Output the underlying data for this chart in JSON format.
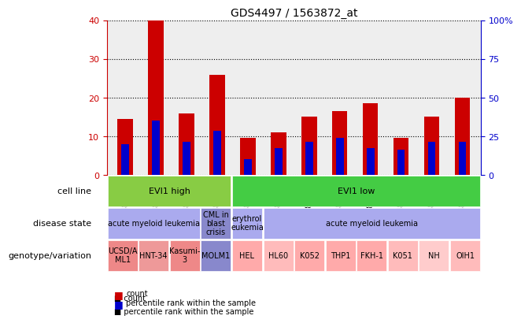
{
  "title": "GDS4497 / 1563872_at",
  "samples": [
    "GSM862831",
    "GSM862832",
    "GSM862833",
    "GSM862834",
    "GSM862823",
    "GSM862824",
    "GSM862825",
    "GSM862826",
    "GSM862827",
    "GSM862828",
    "GSM862829",
    "GSM862830"
  ],
  "count_values": [
    14.5,
    40.0,
    16.0,
    26.0,
    9.5,
    11.0,
    15.0,
    16.5,
    18.5,
    9.5,
    15.0,
    20.0
  ],
  "percentile_values": [
    8.0,
    14.0,
    8.5,
    11.5,
    4.0,
    7.0,
    8.5,
    9.5,
    7.0,
    6.5,
    8.5,
    8.5
  ],
  "ylim_left": [
    0,
    40
  ],
  "ylim_right": [
    0,
    100
  ],
  "yticks_left": [
    0,
    10,
    20,
    30,
    40
  ],
  "yticks_right": [
    0,
    25,
    50,
    75,
    100
  ],
  "ytick_labels_right": [
    "0",
    "25",
    "50",
    "75",
    "100%"
  ],
  "bar_color": "#cc0000",
  "percentile_color": "#0000cc",
  "bg_color": "#ffffff",
  "plot_bg_color": "#ffffff",
  "grid_color": "#000000",
  "axis_color_left": "#cc0000",
  "axis_color_right": "#0000cc",
  "bar_width": 0.5,
  "genotype_groups": [
    {
      "label": "EVI1 high",
      "start": 0,
      "end": 4,
      "color": "#88cc44"
    },
    {
      "label": "EVI1 low",
      "start": 4,
      "end": 12,
      "color": "#44cc44"
    }
  ],
  "disease_groups": [
    {
      "label": "acute myeloid leukemia",
      "start": 0,
      "end": 3,
      "color": "#aaaaee"
    },
    {
      "label": "CML in\nblast\ncrisis",
      "start": 3,
      "end": 4,
      "color": "#8888cc"
    },
    {
      "label": "erythrol\neukemia",
      "start": 4,
      "end": 5,
      "color": "#aaaaee"
    },
    {
      "label": "acute myeloid leukemia",
      "start": 5,
      "end": 12,
      "color": "#aaaaee"
    }
  ],
  "cell_groups": [
    {
      "label": "UCSD/A\nML1",
      "start": 0,
      "end": 1,
      "color": "#ee8888"
    },
    {
      "label": "HNT-34",
      "start": 1,
      "end": 2,
      "color": "#ee9999"
    },
    {
      "label": "Kasumi-\n3",
      "start": 2,
      "end": 3,
      "color": "#ee8888"
    },
    {
      "label": "MOLM1",
      "start": 3,
      "end": 4,
      "color": "#8888cc"
    },
    {
      "label": "HEL",
      "start": 4,
      "end": 5,
      "color": "#ffaaaa"
    },
    {
      "label": "HL60",
      "start": 5,
      "end": 6,
      "color": "#ffbbbb"
    },
    {
      "label": "K052",
      "start": 6,
      "end": 7,
      "color": "#ffaaaa"
    },
    {
      "label": "THP1",
      "start": 7,
      "end": 8,
      "color": "#ffaaaa"
    },
    {
      "label": "FKH-1",
      "start": 8,
      "end": 9,
      "color": "#ffaaaa"
    },
    {
      "label": "K051",
      "start": 9,
      "end": 10,
      "color": "#ffbbbb"
    },
    {
      "label": "NH",
      "start": 10,
      "end": 11,
      "color": "#ffcccc"
    },
    {
      "label": "OIH1",
      "start": 11,
      "end": 12,
      "color": "#ffbbbb"
    }
  ],
  "row_labels": [
    "genotype/variation",
    "disease state",
    "cell line"
  ],
  "legend_items": [
    {
      "label": "count",
      "color": "#cc0000"
    },
    {
      "label": "percentile rank within the sample",
      "color": "#0000cc"
    }
  ]
}
